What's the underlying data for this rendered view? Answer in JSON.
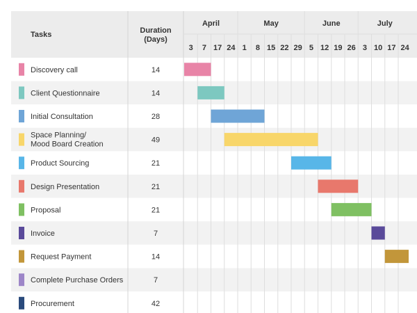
{
  "header": {
    "tasks_label": "Tasks",
    "duration_label_line1": "Duration",
    "duration_label_line2": "(Days)"
  },
  "chart_data": {
    "type": "gantt",
    "months": [
      "April",
      "May",
      "June",
      "July"
    ],
    "week_ticks": [
      "3",
      "7",
      "17",
      "24",
      "1",
      "8",
      "15",
      "22",
      "29",
      "5",
      "12",
      "19",
      "26",
      "3",
      "10",
      "17",
      "24"
    ],
    "tasks": [
      {
        "name_lines": [
          "Discovery call"
        ],
        "duration": "14",
        "start_week": 0,
        "weeks": 2,
        "color": "#e884a7"
      },
      {
        "name_lines": [
          "Client Questionnaire"
        ],
        "duration": "14",
        "start_week": 1,
        "weeks": 2,
        "color": "#7dc8c0"
      },
      {
        "name_lines": [
          "Initial Consultation"
        ],
        "duration": "28",
        "start_week": 2,
        "weeks": 4,
        "color": "#6fa5d7"
      },
      {
        "name_lines": [
          "Space Planning/",
          "Mood Board Creation"
        ],
        "duration": "49",
        "start_week": 3,
        "weeks": 7,
        "color": "#f8d66a"
      },
      {
        "name_lines": [
          "Product Sourcing"
        ],
        "duration": "21",
        "start_week": 8,
        "weeks": 3,
        "color": "#58b6e8"
      },
      {
        "name_lines": [
          "Design Presentation"
        ],
        "duration": "21",
        "start_week": 10,
        "weeks": 3,
        "color": "#e8786c"
      },
      {
        "name_lines": [
          "Proposal"
        ],
        "duration": "21",
        "start_week": 11,
        "weeks": 3,
        "color": "#7fc062"
      },
      {
        "name_lines": [
          "Invoice"
        ],
        "duration": "7",
        "start_week": 14,
        "weeks": 1,
        "color": "#5a4a9a"
      },
      {
        "name_lines": [
          "Request Payment"
        ],
        "duration": "14",
        "start_week": 15,
        "weeks": 2,
        "color": "#c2963a"
      },
      {
        "name_lines": [
          "Complete Purchase Orders"
        ],
        "duration": "7",
        "start_week": null,
        "weeks": 0,
        "color": "#9d86c8"
      },
      {
        "name_lines": [
          "Procurement"
        ],
        "duration": "42",
        "start_week": null,
        "weeks": 0,
        "color": "#2a4a7c"
      }
    ]
  }
}
